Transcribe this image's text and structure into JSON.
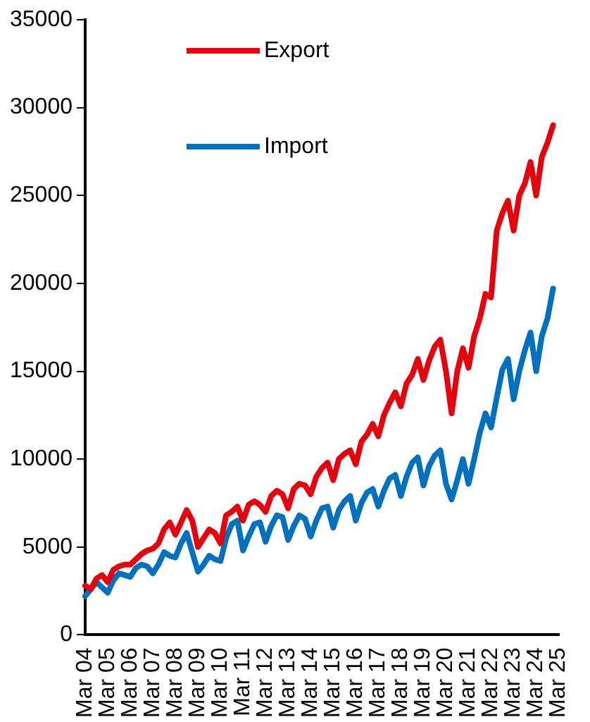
{
  "chart_data": {
    "type": "line",
    "categories": [
      "Mar 04",
      null,
      null,
      null,
      "Mar 05",
      null,
      null,
      null,
      "Mar 06",
      null,
      null,
      null,
      "Mar 07",
      null,
      null,
      null,
      "Mar 08",
      null,
      null,
      null,
      "Mar 09",
      null,
      null,
      null,
      "Mar 10",
      null,
      null,
      null,
      "Mar 11",
      null,
      null,
      null,
      "Mar 12",
      null,
      null,
      null,
      "Mar 13",
      null,
      null,
      null,
      "Mar 14",
      null,
      null,
      null,
      "Mar 15",
      null,
      null,
      null,
      "Mar 16",
      null,
      null,
      null,
      "Mar 17",
      null,
      null,
      null,
      "Mar 18",
      null,
      null,
      null,
      "Mar 19",
      null,
      null,
      null,
      "Mar 20",
      null,
      null,
      null,
      "Mar 21",
      null,
      null,
      null,
      "Mar 22",
      null,
      null,
      null,
      "Mar 23",
      null,
      null,
      null,
      "Mar 24",
      null,
      null,
      null,
      "Mar 25"
    ],
    "series": [
      {
        "name": "Export",
        "color": "#e8000b",
        "values": [
          2800,
          2600,
          3200,
          3400,
          3000,
          3700,
          3900,
          4000,
          4000,
          4300,
          4600,
          4800,
          4900,
          5200,
          6000,
          6400,
          5700,
          6400,
          7100,
          6500,
          5000,
          5500,
          6000,
          5800,
          5200,
          6800,
          7000,
          7300,
          6500,
          7400,
          7600,
          7400,
          7000,
          7900,
          8200,
          8000,
          7200,
          8300,
          8600,
          8500,
          8000,
          9000,
          9500,
          9800,
          8800,
          10000,
          10300,
          10500,
          9700,
          11000,
          11400,
          12000,
          11300,
          12500,
          13200,
          13800,
          13000,
          14300,
          14800,
          15700,
          14500,
          15600,
          16400,
          16800,
          15000,
          12600,
          15000,
          16300,
          15200,
          17000,
          18000,
          19400,
          19200,
          23000,
          24000,
          24700,
          23000,
          25000,
          25700,
          26900,
          25000,
          27200,
          28000,
          29000,
          null
        ]
      },
      {
        "name": "Import",
        "color": "#0070c0",
        "values": [
          2200,
          2600,
          3000,
          2700,
          2400,
          3100,
          3500,
          3400,
          3300,
          3800,
          4000,
          3900,
          3500,
          4000,
          4700,
          4500,
          4400,
          5200,
          5800,
          4700,
          3600,
          4000,
          4500,
          4300,
          4200,
          5500,
          6300,
          6500,
          4800,
          5600,
          6300,
          6400,
          5300,
          6200,
          6800,
          6700,
          5400,
          6200,
          6800,
          6600,
          5600,
          6500,
          7200,
          7300,
          6100,
          7100,
          7600,
          7900,
          6500,
          7500,
          8100,
          8300,
          7300,
          8200,
          8900,
          9100,
          7900,
          9000,
          9800,
          10100,
          8500,
          9600,
          10200,
          10500,
          8600,
          7700,
          8800,
          10000,
          8600,
          10000,
          11500,
          12600,
          11800,
          13500,
          15100,
          15700,
          13400,
          15000,
          16200,
          17200,
          15000,
          17000,
          18000,
          19700,
          null
        ]
      }
    ],
    "ylim": [
      0,
      35000
    ],
    "yticks": [
      0,
      5000,
      10000,
      15000,
      20000,
      25000,
      30000,
      35000
    ],
    "grid": false,
    "legend": "top left",
    "marker": "none",
    "line_style": "solid"
  }
}
